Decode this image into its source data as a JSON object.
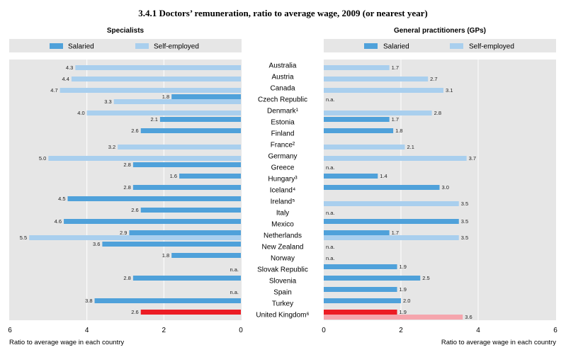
{
  "chart_data": {
    "type": "bar",
    "title": "3.4.1 Doctors’ remuneration, ratio to average wage, 2009 (or nearest year)",
    "categories": [
      "Australia",
      "Austria",
      "Canada",
      "Czech Republic",
      "Denmark¹",
      "Estonia",
      "Finland",
      "France²",
      "Germany",
      "Greece",
      "Hungary³",
      "Iceland⁴",
      "Ireland⁵",
      "Italy",
      "Mexico",
      "Netherlands",
      "New Zealand",
      "Norway",
      "Slovak Republic",
      "Slovenia",
      "Spain",
      "Turkey",
      "United Kingdom⁶"
    ],
    "na_label": "n.a.",
    "highlight_row": 22,
    "colors": {
      "salaried": "#4fa1da",
      "self_employed": "#a9cfee",
      "highlight_salaried": "#ec1c24",
      "highlight_self_employed": "#f5a5ad",
      "panel_background": "#e6e6e6"
    },
    "panels": [
      {
        "title": "Specialists",
        "xlabel": "Ratio to average wage in each country",
        "xlim": [
          0,
          6
        ],
        "xticks": [
          0,
          2,
          4,
          6
        ],
        "series": [
          {
            "name": "Salaried",
            "values": [
              null,
              null,
              null,
              1.8,
              null,
              2.1,
              2.6,
              null,
              null,
              2.8,
              1.6,
              2.8,
              4.5,
              2.6,
              4.6,
              2.9,
              3.6,
              1.8,
              null,
              2.8,
              null,
              3.8,
              2.6
            ]
          },
          {
            "name": "Self-employed",
            "values": [
              4.3,
              4.4,
              4.7,
              3.3,
              4.0,
              null,
              null,
              3.2,
              5.0,
              null,
              null,
              null,
              null,
              null,
              null,
              5.5,
              null,
              null,
              null,
              null,
              null,
              null,
              null
            ]
          }
        ],
        "na_rows": [
          18,
          20
        ]
      },
      {
        "title": "General practitioners (GPs)",
        "xlabel": "Ratio to average wage in each country",
        "xlim": [
          0,
          6
        ],
        "xticks": [
          0,
          2,
          4,
          6
        ],
        "series": [
          {
            "name": "Salaried",
            "values": [
              null,
              null,
              null,
              null,
              null,
              1.7,
              1.8,
              null,
              null,
              null,
              1.4,
              3.0,
              null,
              null,
              3.5,
              1.7,
              null,
              null,
              1.9,
              2.5,
              1.9,
              2.0,
              1.9
            ]
          },
          {
            "name": "Self-employed",
            "values": [
              1.7,
              2.7,
              3.1,
              null,
              2.8,
              null,
              null,
              2.1,
              3.7,
              null,
              null,
              null,
              3.5,
              null,
              null,
              3.5,
              null,
              null,
              null,
              null,
              null,
              null,
              3.6
            ]
          }
        ],
        "na_rows": [
          3,
          9,
          13,
          16,
          17
        ]
      }
    ]
  }
}
